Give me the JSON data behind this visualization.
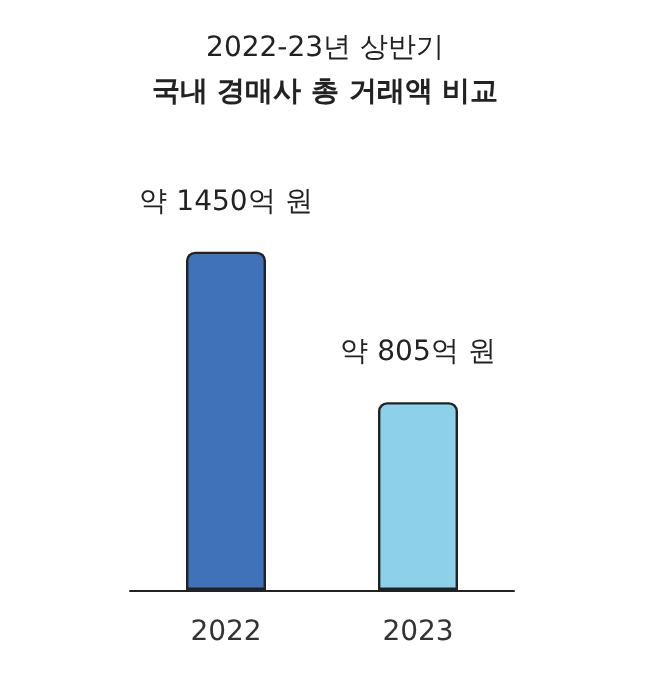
{
  "chart_data": {
    "type": "bar",
    "title": "2022-23년 상반기",
    "subtitle": "국내 경매사 총 거래액 비교",
    "categories": [
      "2022",
      "2023"
    ],
    "values": [
      1450,
      805
    ],
    "colors": [
      "#3f72b8",
      "#8dd0ea"
    ],
    "value_labels": [
      "약 1450억 원",
      "약 805억 원"
    ]
  }
}
